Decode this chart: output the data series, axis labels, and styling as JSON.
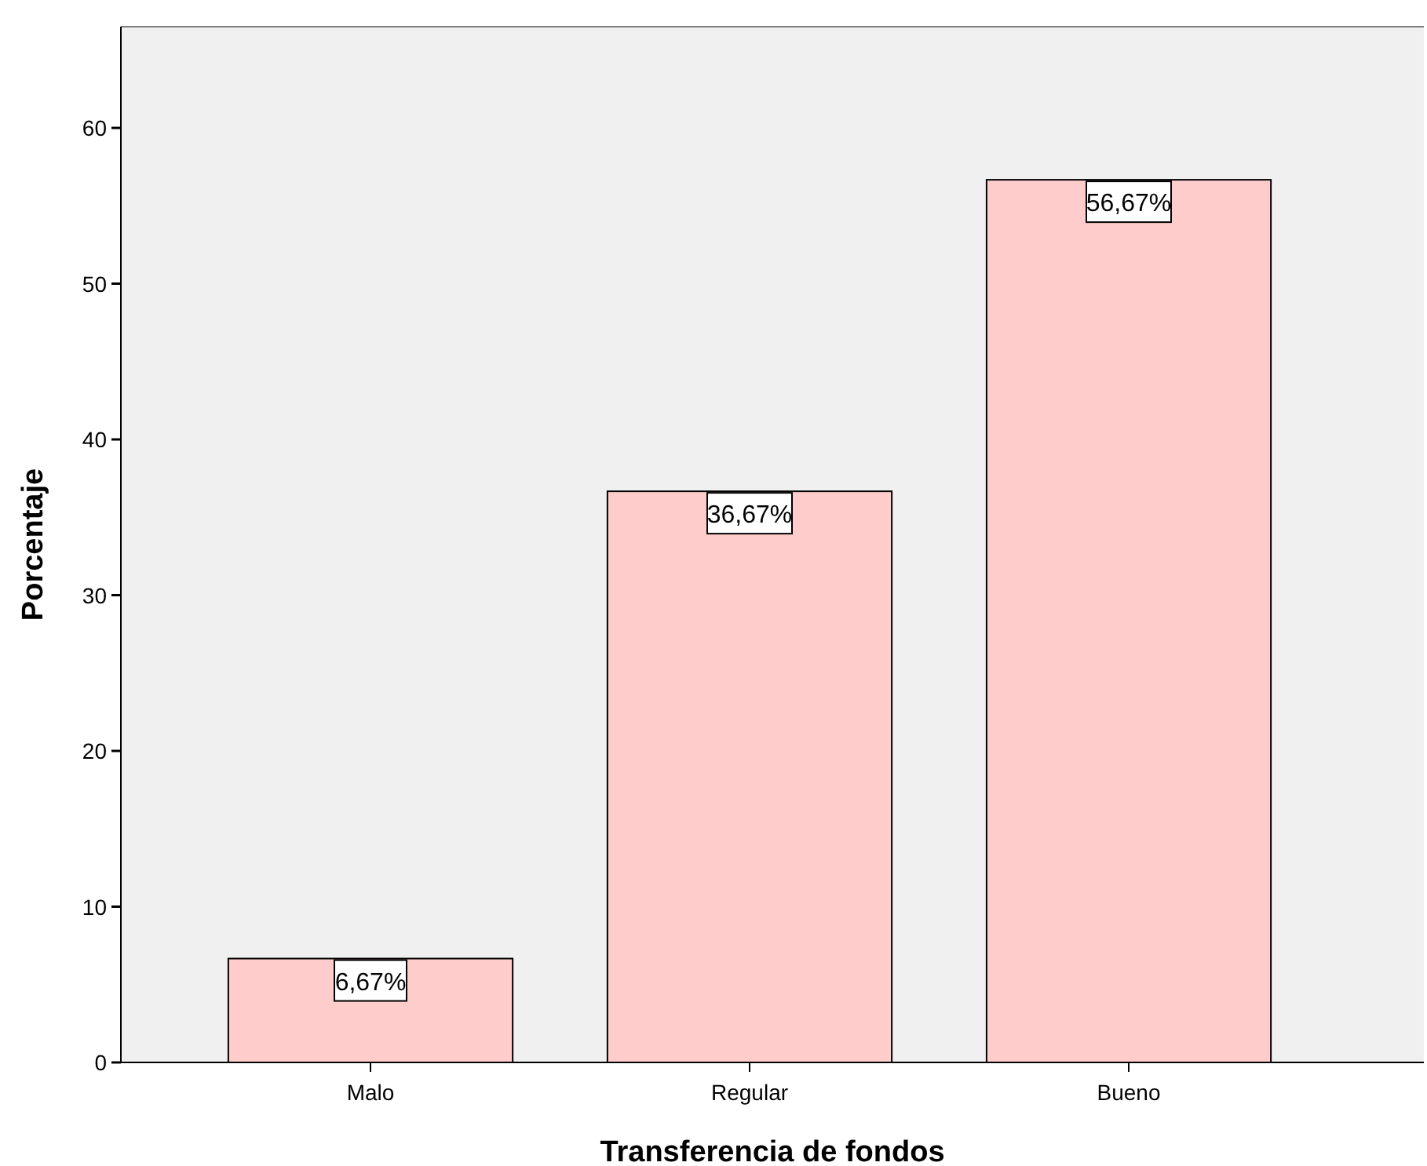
{
  "chart_data": {
    "type": "bar",
    "xlabel": "Transferencia de fondos",
    "ylabel": "Porcentaje",
    "categories": [
      "Malo",
      "Regular",
      "Bueno"
    ],
    "values": [
      6.67,
      36.67,
      56.67
    ],
    "value_labels": [
      "6,67%",
      "36,67%",
      "56,67%"
    ],
    "color": "#ffcccc",
    "ylim": [
      0,
      66.5
    ],
    "yticks": [
      0,
      10,
      20,
      30,
      40,
      50,
      60
    ],
    "grid": false
  }
}
